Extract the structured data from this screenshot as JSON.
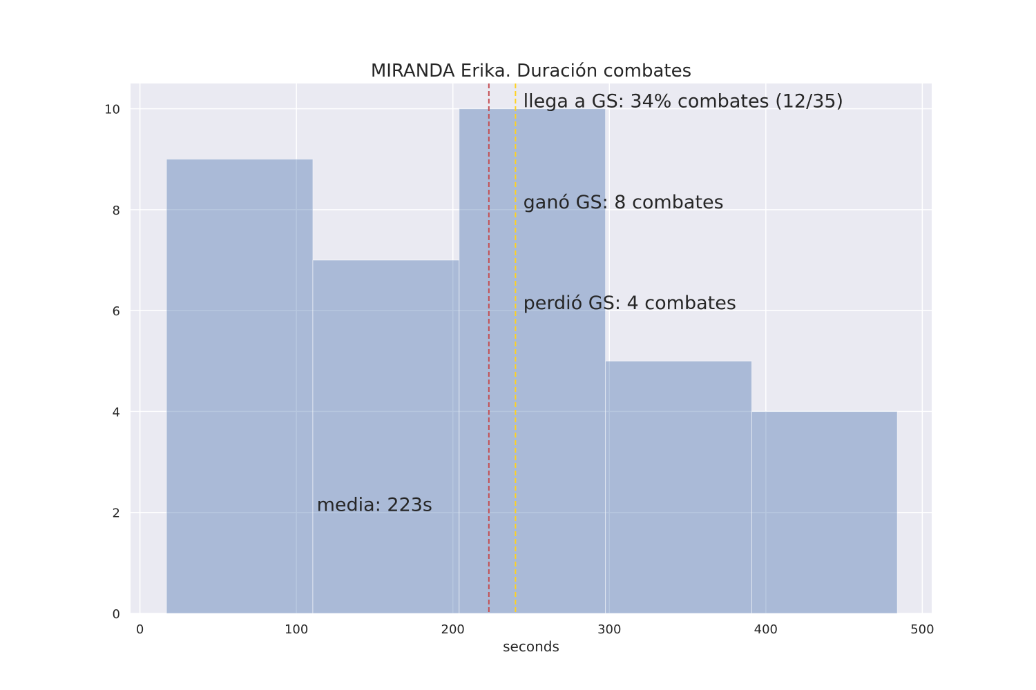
{
  "chart_data": {
    "type": "bar",
    "title": "MIRANDA Erika. Duración combates",
    "xlabel": "seconds",
    "ylabel": "",
    "xlim": [
      -6,
      506
    ],
    "ylim": [
      0,
      10.5
    ],
    "xticks": [
      0,
      100,
      200,
      300,
      400,
      500
    ],
    "yticks": [
      0,
      2,
      4,
      6,
      8,
      10
    ],
    "grid": true,
    "bins": [
      {
        "x0": 17,
        "x1": 110.5,
        "count": 9
      },
      {
        "x0": 110.5,
        "x1": 204,
        "count": 7
      },
      {
        "x0": 204,
        "x1": 297.5,
        "count": 10
      },
      {
        "x0": 297.5,
        "x1": 391,
        "count": 5
      },
      {
        "x0": 391,
        "x1": 484,
        "count": 4
      }
    ],
    "vlines": [
      {
        "x": 223,
        "color": "#c44e52",
        "style": "dashed"
      },
      {
        "x": 240,
        "color": "#ffd21f",
        "style": "dashed"
      }
    ],
    "annotations": [
      {
        "text": "llega a GS: 34% combates (12/35)",
        "x": 245,
        "y": 10,
        "color": "#262626"
      },
      {
        "text": "ganó GS: 8 combates",
        "x": 245,
        "y": 8,
        "color": "#262626"
      },
      {
        "text": "perdió GS: 4 combates",
        "x": 245,
        "y": 6,
        "color": "#262626"
      },
      {
        "text": "media: 223s",
        "x": 113,
        "y": 2,
        "color": "#c44e52"
      }
    ],
    "colors": {
      "bar": "#4c72b0",
      "bar_opacity": 0.4,
      "background": "#eaeaf2",
      "grid": "#ffffff"
    }
  }
}
